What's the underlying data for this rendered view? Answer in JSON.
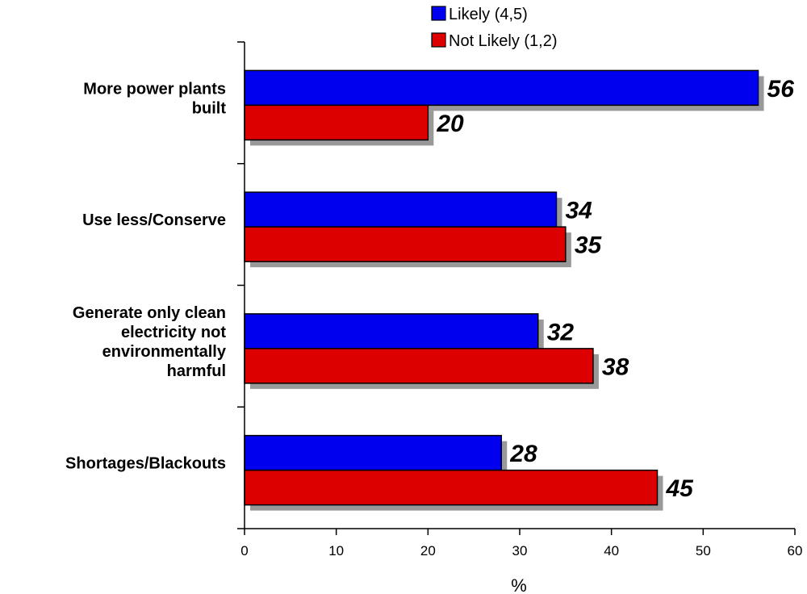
{
  "chart_data": {
    "type": "bar",
    "orientation": "horizontal",
    "categories": [
      [
        "More power plants",
        "built"
      ],
      [
        "Use less/Conserve"
      ],
      [
        "Generate only clean",
        "electricity not",
        "environmentally",
        "harmful"
      ],
      [
        "Shortages/Blackouts"
      ]
    ],
    "series": [
      {
        "name": "Likely (4,5)",
        "color": "#0000ee",
        "values": [
          56,
          34,
          32,
          28
        ]
      },
      {
        "name": "Not Likely (1,2)",
        "color": "#dd0000",
        "values": [
          20,
          35,
          38,
          45
        ]
      }
    ],
    "xlabel": "%",
    "xlim": [
      0,
      60
    ],
    "xticks": [
      0,
      10,
      20,
      30,
      40,
      50,
      60
    ],
    "legend_position": "top-right",
    "grid": false,
    "shadow_color": "#999999"
  }
}
